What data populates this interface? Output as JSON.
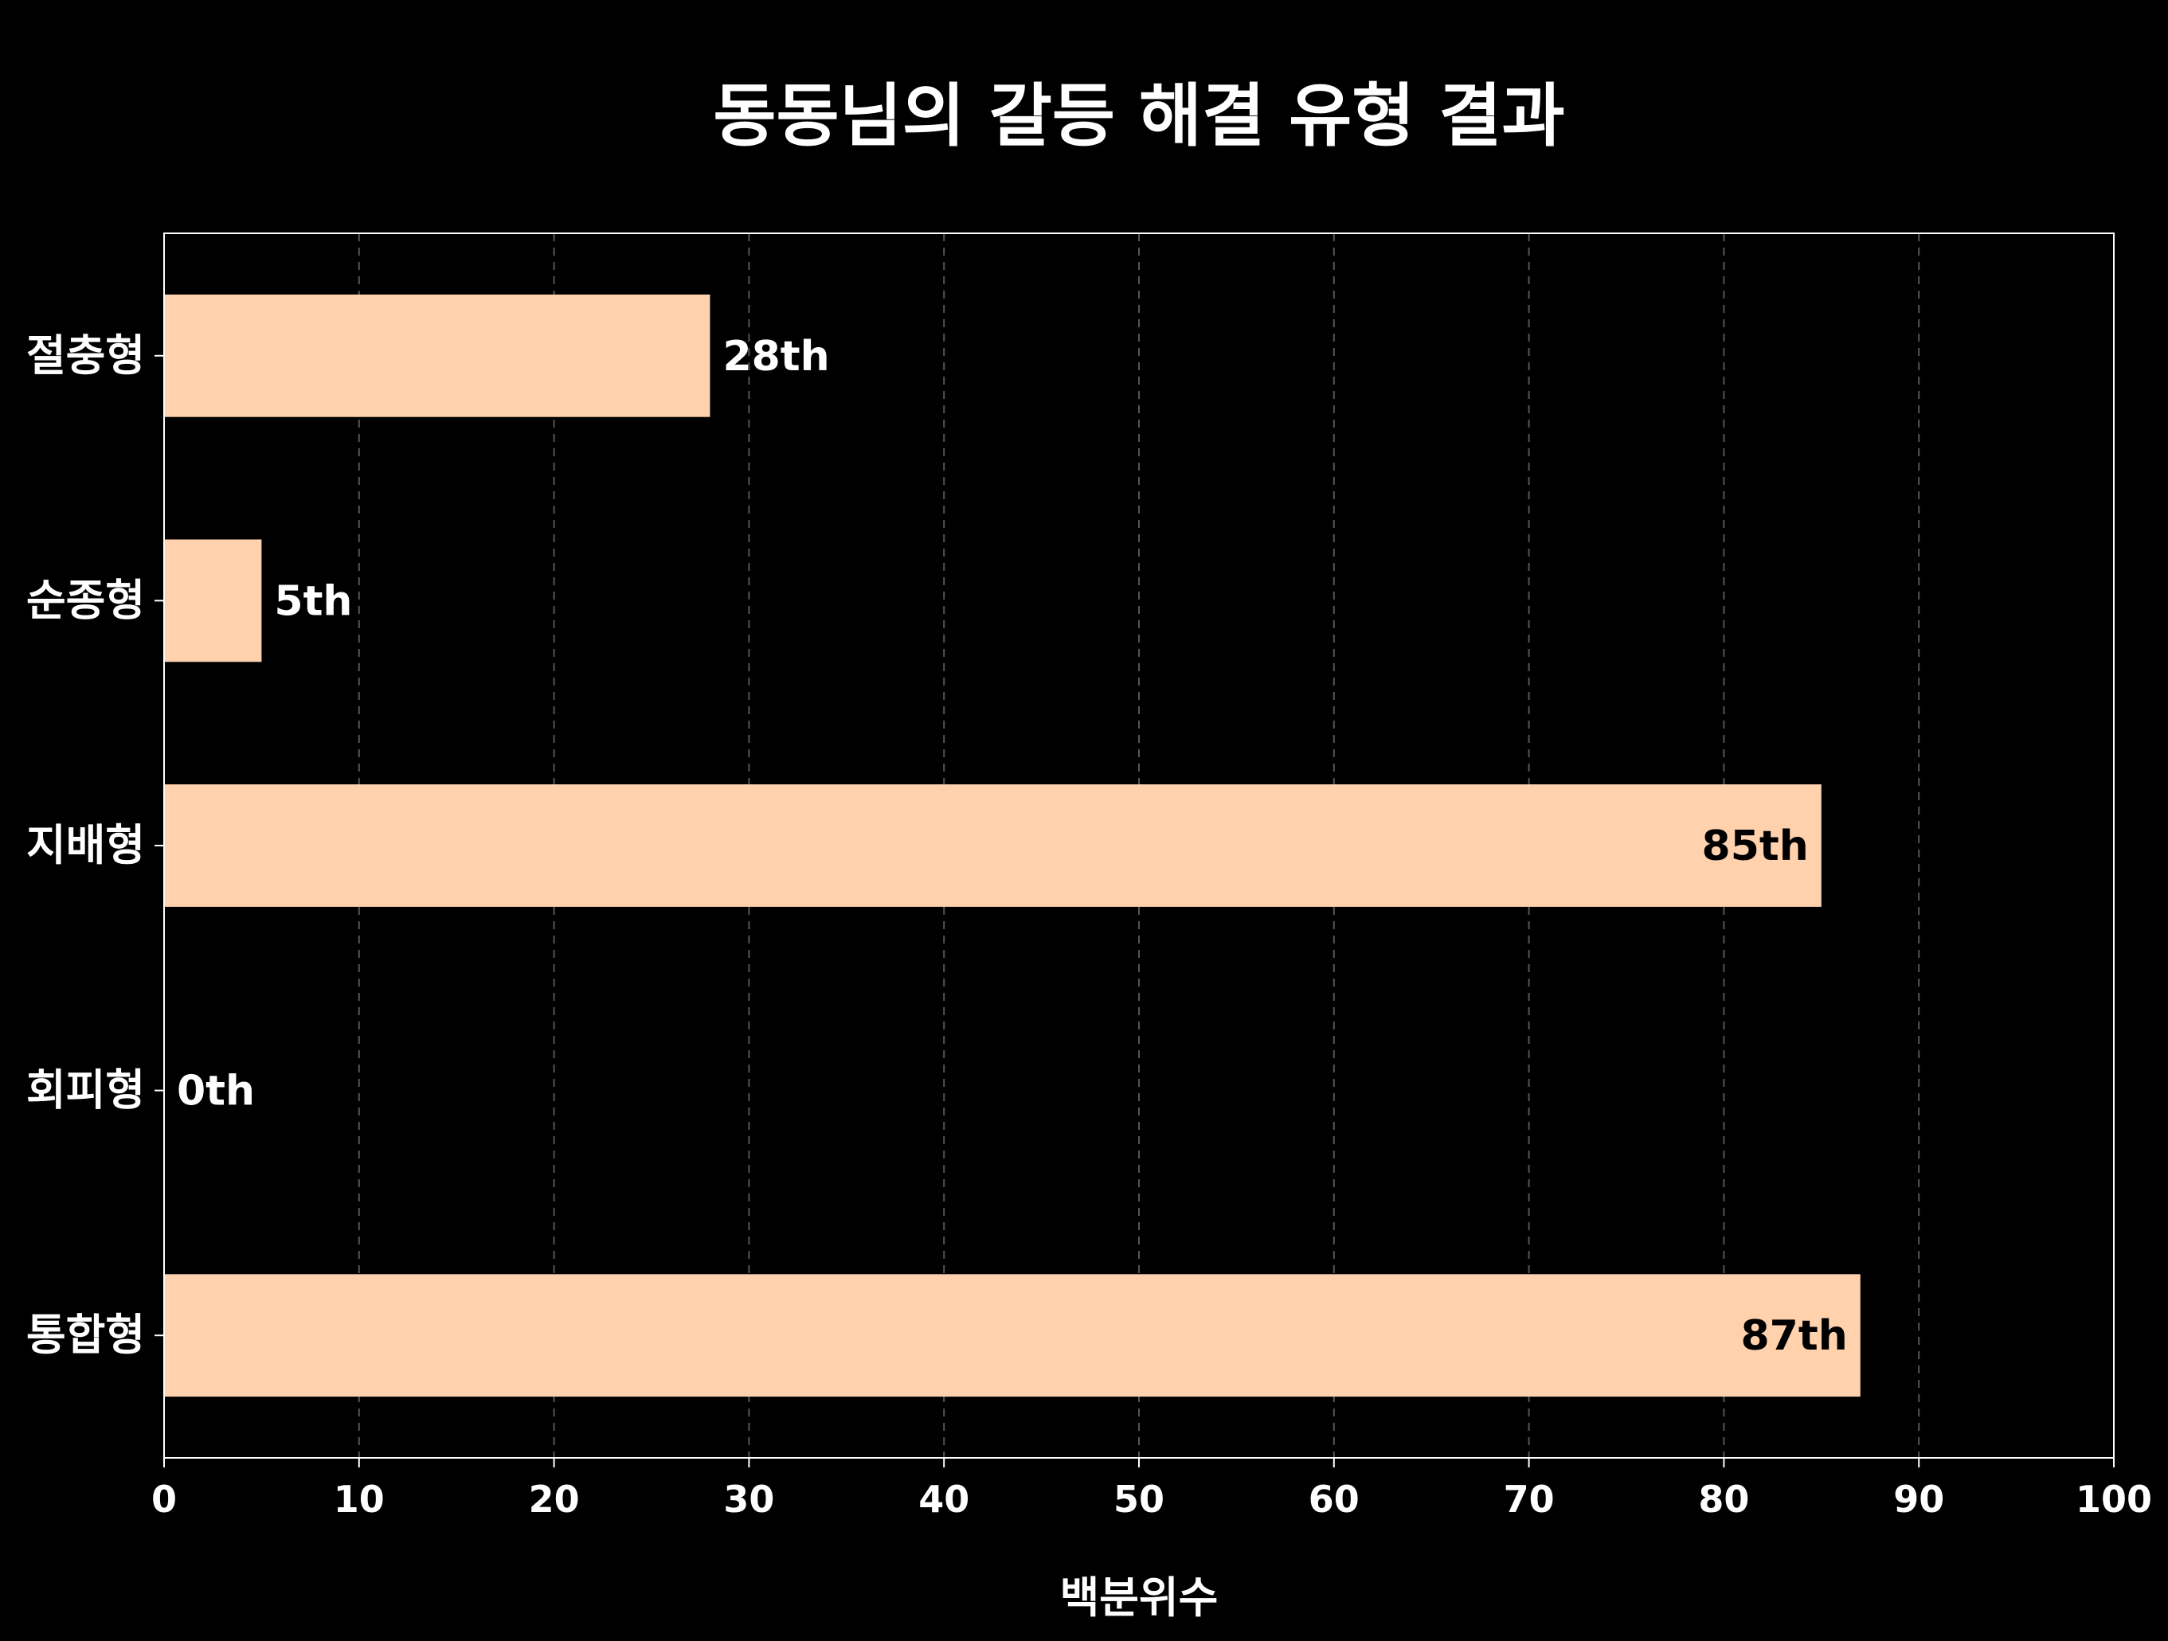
{
  "chart_data": {
    "type": "bar",
    "orientation": "horizontal",
    "title": "동동님의 갈등 해결 유형 결과",
    "xlabel": "백분위수",
    "ylabel": "",
    "categories": [
      "절충형",
      "순종형",
      "지배형",
      "회피형",
      "통합형"
    ],
    "values": [
      28,
      5,
      85,
      0,
      87
    ],
    "data_labels": [
      "28th",
      "5th",
      "85th",
      "0th",
      "87th"
    ],
    "xlim": [
      0,
      100
    ],
    "xticks": [
      "0",
      "10",
      "20",
      "30",
      "40",
      "50",
      "60",
      "70",
      "80",
      "90",
      "100"
    ],
    "grid": "vertical dashed",
    "legend": "none",
    "colors": {
      "background": "#000000",
      "bar": "#ffd1ad",
      "text": "#ffffff",
      "label_inside": "#000000",
      "grid": "#555555",
      "axis": "#ffffff"
    }
  }
}
